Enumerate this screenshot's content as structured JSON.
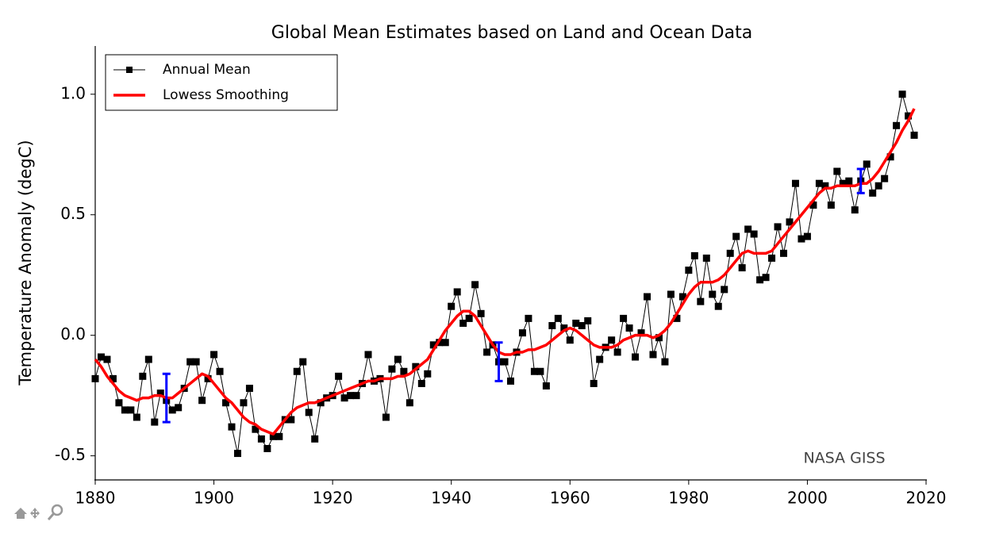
{
  "chart_data": {
    "type": "line",
    "title": "Global Mean Estimates based on Land and Ocean Data",
    "y_label": "Temperature Anomaly (degC)",
    "annotation": "NASA GISS",
    "legend": "upper left",
    "xlim": [
      1880,
      2020
    ],
    "xticks": [
      1880,
      1900,
      1920,
      1940,
      1960,
      1980,
      2000,
      2020
    ],
    "ylim": [
      -0.6,
      1.2
    ],
    "yticks": [
      -0.5,
      {
        "value": 0,
        "label": "0.0"
      },
      0.5,
      {
        "value": 1,
        "label": "1.0"
      }
    ],
    "x": [
      1880,
      1881,
      1882,
      1883,
      1884,
      1885,
      1886,
      1887,
      1888,
      1889,
      1890,
      1891,
      1892,
      1893,
      1894,
      1895,
      1896,
      1897,
      1898,
      1899,
      1900,
      1901,
      1902,
      1903,
      1904,
      1905,
      1906,
      1907,
      1908,
      1909,
      1910,
      1911,
      1912,
      1913,
      1914,
      1915,
      1916,
      1917,
      1918,
      1919,
      1920,
      1921,
      1922,
      1923,
      1924,
      1925,
      1926,
      1927,
      1928,
      1929,
      1930,
      1931,
      1932,
      1933,
      1934,
      1935,
      1936,
      1937,
      1938,
      1939,
      1940,
      1941,
      1942,
      1943,
      1944,
      1945,
      1946,
      1947,
      1948,
      1949,
      1950,
      1951,
      1952,
      1953,
      1954,
      1955,
      1956,
      1957,
      1958,
      1959,
      1960,
      1961,
      1962,
      1963,
      1964,
      1965,
      1966,
      1967,
      1968,
      1969,
      1970,
      1971,
      1972,
      1973,
      1974,
      1975,
      1976,
      1977,
      1978,
      1979,
      1980,
      1981,
      1982,
      1983,
      1984,
      1985,
      1986,
      1987,
      1988,
      1989,
      1990,
      1991,
      1992,
      1993,
      1994,
      1995,
      1996,
      1997,
      1998,
      1999,
      2000,
      2001,
      2002,
      2003,
      2004,
      2005,
      2006,
      2007,
      2008,
      2009,
      2010,
      2011,
      2012,
      2013,
      2014,
      2015,
      2016,
      2017,
      2018
    ],
    "series": [
      {
        "name": "Annual Mean",
        "color": "#000000",
        "marker": "square",
        "values": [
          -0.18,
          -0.09,
          -0.1,
          -0.18,
          -0.28,
          -0.31,
          -0.31,
          -0.34,
          -0.17,
          -0.1,
          -0.36,
          -0.24,
          -0.27,
          -0.31,
          -0.3,
          -0.22,
          -0.11,
          -0.11,
          -0.27,
          -0.18,
          -0.08,
          -0.15,
          -0.28,
          -0.38,
          -0.49,
          -0.28,
          -0.22,
          -0.39,
          -0.43,
          -0.47,
          -0.42,
          -0.42,
          -0.35,
          -0.35,
          -0.15,
          -0.11,
          -0.32,
          -0.43,
          -0.28,
          -0.26,
          -0.25,
          -0.17,
          -0.26,
          -0.25,
          -0.25,
          -0.2,
          -0.08,
          -0.19,
          -0.18,
          -0.34,
          -0.14,
          -0.1,
          -0.15,
          -0.28,
          -0.13,
          -0.2,
          -0.16,
          -0.04,
          -0.03,
          -0.03,
          0.12,
          0.18,
          0.05,
          0.07,
          0.21,
          0.09,
          -0.07,
          -0.04,
          -0.11,
          -0.11,
          -0.19,
          -0.07,
          0.01,
          0.07,
          -0.15,
          -0.15,
          -0.21,
          0.04,
          0.07,
          0.03,
          -0.02,
          0.05,
          0.04,
          0.06,
          -0.2,
          -0.1,
          -0.05,
          -0.02,
          -0.07,
          0.07,
          0.03,
          -0.09,
          0.01,
          0.16,
          -0.08,
          -0.01,
          -0.11,
          0.17,
          0.07,
          0.16,
          0.27,
          0.33,
          0.14,
          0.32,
          0.17,
          0.12,
          0.19,
          0.34,
          0.41,
          0.28,
          0.44,
          0.42,
          0.23,
          0.24,
          0.32,
          0.45,
          0.34,
          0.47,
          0.63,
          0.4,
          0.41,
          0.54,
          0.63,
          0.62,
          0.54,
          0.68,
          0.63,
          0.64,
          0.52,
          0.64,
          0.71,
          0.59,
          0.62,
          0.65,
          0.74,
          0.87,
          1.0,
          0.91,
          0.83
        ]
      },
      {
        "name": "Lowess Smoothing",
        "color": "#ff0000",
        "values": [
          -0.1,
          -0.13,
          -0.17,
          -0.2,
          -0.23,
          -0.25,
          -0.26,
          -0.27,
          -0.26,
          -0.26,
          -0.25,
          -0.25,
          -0.26,
          -0.26,
          -0.24,
          -0.22,
          -0.2,
          -0.18,
          -0.16,
          -0.17,
          -0.2,
          -0.23,
          -0.26,
          -0.28,
          -0.31,
          -0.34,
          -0.36,
          -0.37,
          -0.39,
          -0.4,
          -0.41,
          -0.38,
          -0.35,
          -0.32,
          -0.3,
          -0.29,
          -0.28,
          -0.28,
          -0.27,
          -0.26,
          -0.25,
          -0.24,
          -0.23,
          -0.22,
          -0.21,
          -0.2,
          -0.19,
          -0.19,
          -0.18,
          -0.18,
          -0.18,
          -0.17,
          -0.17,
          -0.16,
          -0.14,
          -0.12,
          -0.1,
          -0.06,
          -0.02,
          0.02,
          0.05,
          0.08,
          0.1,
          0.1,
          0.08,
          0.04,
          0.0,
          -0.04,
          -0.07,
          -0.08,
          -0.08,
          -0.07,
          -0.07,
          -0.06,
          -0.06,
          -0.05,
          -0.04,
          -0.02,
          0.0,
          0.02,
          0.03,
          0.02,
          0.0,
          -0.02,
          -0.04,
          -0.05,
          -0.05,
          -0.05,
          -0.04,
          -0.02,
          -0.01,
          0.0,
          0.0,
          0.0,
          -0.01,
          0.0,
          0.02,
          0.05,
          0.09,
          0.13,
          0.17,
          0.2,
          0.22,
          0.22,
          0.22,
          0.23,
          0.25,
          0.28,
          0.31,
          0.34,
          0.35,
          0.34,
          0.34,
          0.34,
          0.35,
          0.38,
          0.41,
          0.44,
          0.47,
          0.5,
          0.53,
          0.56,
          0.59,
          0.61,
          0.61,
          0.62,
          0.62,
          0.62,
          0.62,
          0.63,
          0.63,
          0.65,
          0.68,
          0.72,
          0.76,
          0.8,
          0.85,
          0.89,
          0.94
        ]
      }
    ],
    "error_bars": {
      "color": "#0000ff",
      "x": [
        1892,
        1948,
        2009
      ],
      "values": [
        -0.26,
        -0.11,
        0.64
      ],
      "errors": [
        0.1,
        0.08,
        0.05
      ]
    }
  }
}
